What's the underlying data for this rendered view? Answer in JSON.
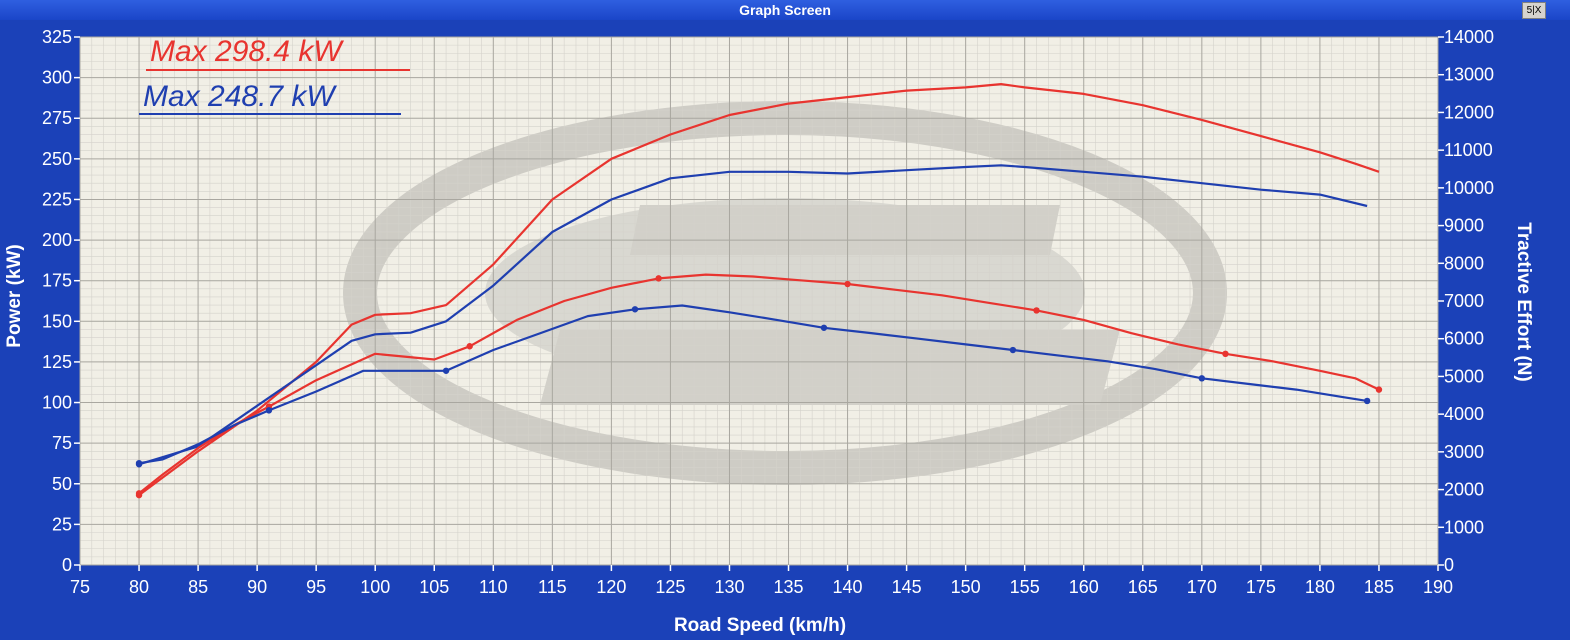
{
  "window": {
    "title": "Graph Screen",
    "restore_button": "5|X"
  },
  "chart_data": {
    "type": "line",
    "xlabel": "Road Speed (km/h)",
    "ylabel": "Power (kW)",
    "y2label": "Tractive Effort (N)",
    "xlim": [
      75,
      190
    ],
    "ylim": [
      0,
      325
    ],
    "y2lim": [
      0,
      14000
    ],
    "x_ticks": [
      75,
      80,
      85,
      90,
      95,
      100,
      105,
      110,
      115,
      120,
      125,
      130,
      135,
      140,
      145,
      150,
      155,
      160,
      165,
      170,
      175,
      180,
      185,
      190
    ],
    "y_ticks": [
      0,
      25,
      50,
      75,
      100,
      125,
      150,
      175,
      200,
      225,
      250,
      275,
      300,
      325
    ],
    "y2_ticks": [
      0,
      1000,
      2000,
      3000,
      4000,
      5000,
      6000,
      7000,
      8000,
      9000,
      10000,
      11000,
      12000,
      13000,
      14000
    ],
    "grid": true,
    "annotations": [
      {
        "text": "Max 298.4 kW",
        "color": "#e8342f"
      },
      {
        "text": "Max 248.7 kW",
        "color": "#1f3fb0"
      }
    ],
    "series": [
      {
        "color": "#e8342f",
        "axis": "left",
        "kind": "power",
        "x": [
          80,
          85,
          90,
          95,
          98,
          100,
          103,
          106,
          110,
          115,
          120,
          125,
          130,
          135,
          140,
          145,
          150,
          153,
          155,
          160,
          165,
          170,
          175,
          180,
          183,
          185
        ],
        "y": [
          43,
          70,
          95,
          125,
          148,
          154,
          155,
          160,
          185,
          225,
          250,
          265,
          277,
          284,
          288,
          292,
          294,
          296,
          294,
          290,
          283,
          274,
          264,
          254,
          247,
          242
        ]
      },
      {
        "color": "#1f3fb0",
        "axis": "left",
        "kind": "power",
        "x": [
          80,
          85,
          90,
          95,
          98,
          100,
          103,
          106,
          110,
          115,
          120,
          125,
          130,
          135,
          140,
          145,
          150,
          153,
          155,
          160,
          165,
          170,
          175,
          180,
          184
        ],
        "y": [
          62,
          73,
          98,
          123,
          138,
          142,
          143,
          150,
          172,
          205,
          225,
          238,
          242,
          242,
          241,
          243,
          245,
          246,
          245,
          242,
          239,
          235,
          231,
          228,
          221
        ]
      },
      {
        "color": "#e8342f",
        "axis": "right",
        "kind": "tractive_effort",
        "x": [
          80,
          82,
          85,
          88,
          91,
          95,
          100,
          105,
          108,
          112,
          116,
          120,
          124,
          128,
          132,
          136,
          140,
          144,
          148,
          152,
          156,
          160,
          164,
          168,
          172,
          176,
          180,
          183,
          185
        ],
        "y": [
          1900,
          2400,
          3100,
          3700,
          4200,
          4900,
          5600,
          5450,
          5800,
          6500,
          7000,
          7350,
          7600,
          7700,
          7650,
          7550,
          7450,
          7300,
          7150,
          6950,
          6750,
          6500,
          6150,
          5850,
          5600,
          5400,
          5150,
          4950,
          4650
        ]
      },
      {
        "color": "#1f3fb0",
        "axis": "right",
        "kind": "tractive_effort",
        "x": [
          80,
          82,
          85,
          88,
          91,
          95,
          99,
          103,
          106,
          110,
          114,
          118,
          122,
          126,
          130,
          134,
          138,
          142,
          146,
          150,
          154,
          158,
          162,
          166,
          170,
          174,
          178,
          182,
          184
        ],
        "y": [
          2700,
          2800,
          3200,
          3700,
          4100,
          4600,
          5150,
          5150,
          5150,
          5700,
          6150,
          6600,
          6780,
          6880,
          6700,
          6500,
          6290,
          6150,
          6000,
          5850,
          5700,
          5550,
          5400,
          5200,
          4950,
          4800,
          4650,
          4450,
          4350
        ]
      }
    ]
  }
}
